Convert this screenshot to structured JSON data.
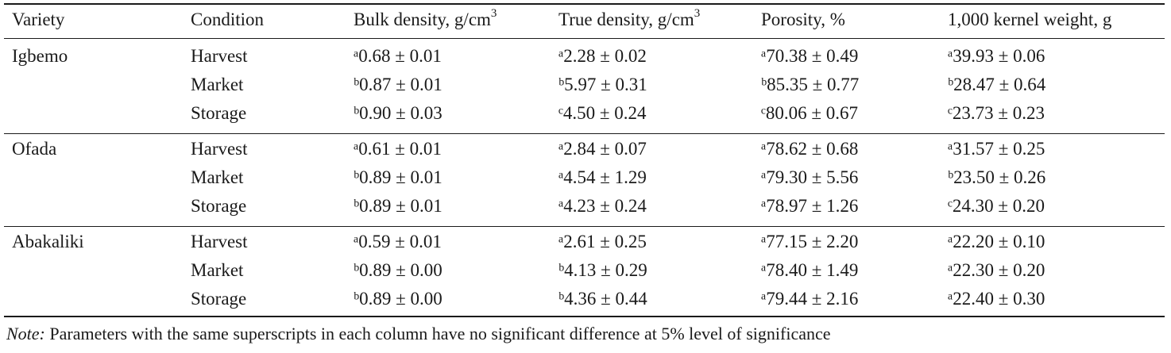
{
  "headers": {
    "variety": "Variety",
    "condition": "Condition",
    "bulk_density": "Bulk density, g/cm",
    "bulk_density_sup": "3",
    "true_density": "True density, g/cm",
    "true_density_sup": "3",
    "porosity": "Porosity, %",
    "kernel_weight": "1,000 kernel weight, g"
  },
  "groups": [
    {
      "variety": "Igbemo",
      "rows": [
        {
          "condition": "Harvest",
          "bulk": "ᵃ0.68 ± 0.01",
          "true": "ᵃ2.28 ± 0.02",
          "porosity": "ᵃ70.38 ± 0.49",
          "weight": "ᵃ39.93 ± 0.06"
        },
        {
          "condition": "Market",
          "bulk": "ᵇ0.87 ± 0.01",
          "true": "ᵇ5.97 ± 0.31",
          "porosity": "ᵇ85.35 ± 0.77",
          "weight": "ᵇ28.47 ± 0.64"
        },
        {
          "condition": "Storage",
          "bulk": "ᵇ0.90 ± 0.03",
          "true": "ᶜ4.50 ± 0.24",
          "porosity": "ᶜ80.06 ± 0.67",
          "weight": "ᶜ23.73 ± 0.23"
        }
      ]
    },
    {
      "variety": "Ofada",
      "rows": [
        {
          "condition": "Harvest",
          "bulk": "ᵃ0.61 ± 0.01",
          "true": "ᵃ2.84 ± 0.07",
          "porosity": "ᵃ78.62 ± 0.68",
          "weight": "ᵃ31.57 ± 0.25"
        },
        {
          "condition": "Market",
          "bulk": "ᵇ0.89 ± 0.01",
          "true": "ᵃ4.54 ± 1.29",
          "porosity": "ᵃ79.30 ± 5.56",
          "weight": "ᵇ23.50 ± 0.26"
        },
        {
          "condition": "Storage",
          "bulk": "ᵇ0.89 ± 0.01",
          "true": "ᵃ4.23 ± 0.24",
          "porosity": "ᵃ78.97 ± 1.26",
          "weight": "ᶜ24.30 ± 0.20"
        }
      ]
    },
    {
      "variety": "Abakaliki",
      "rows": [
        {
          "condition": "Harvest",
          "bulk": "ᵃ0.59 ± 0.01",
          "true": "ᵃ2.61 ± 0.25",
          "porosity": "ᵃ77.15 ± 2.20",
          "weight": "ᵃ22.20 ± 0.10"
        },
        {
          "condition": "Market",
          "bulk": "ᵇ0.89 ± 0.00",
          "true": "ᵇ4.13 ± 0.29",
          "porosity": "ᵃ78.40 ± 1.49",
          "weight": "ᵃ22.30 ± 0.20"
        },
        {
          "condition": "Storage",
          "bulk": "ᵇ0.89 ± 0.00",
          "true": "ᵇ4.36 ± 0.44",
          "porosity": "ᵃ79.44 ± 2.16",
          "weight": "ᵃ22.40 ± 0.30"
        }
      ]
    }
  ],
  "note": {
    "label": "Note:",
    "text": " Parameters with the same superscripts in each column have no significant difference at 5% level of significance"
  }
}
